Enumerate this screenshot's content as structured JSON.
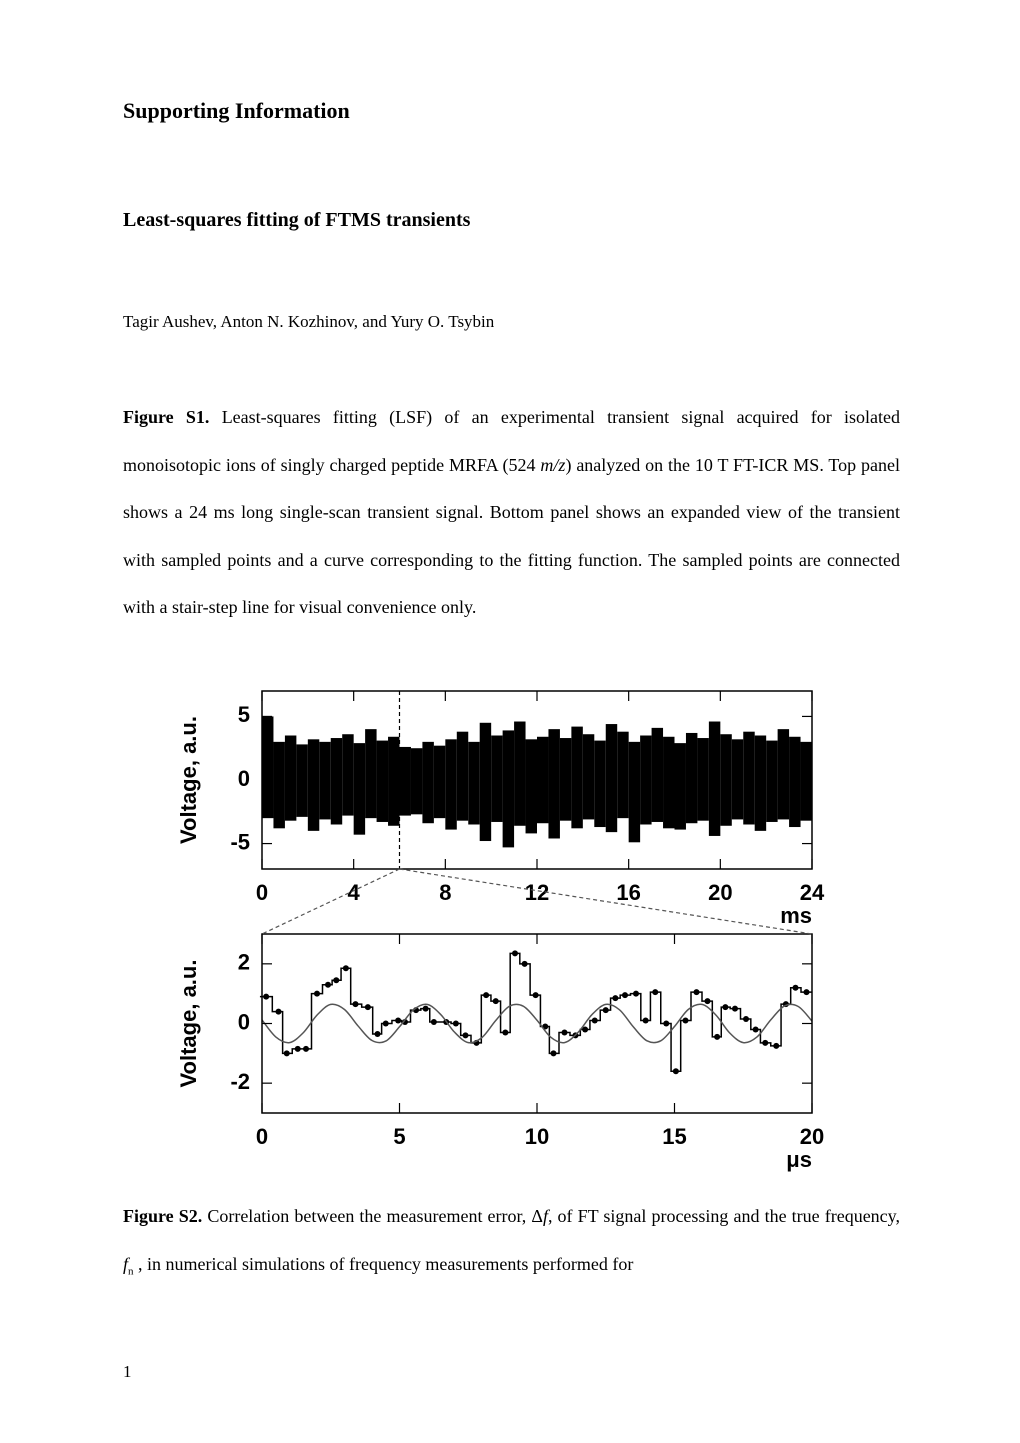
{
  "header": {
    "title": "Supporting Information",
    "subtitle": "Least-squares fitting of FTMS transients",
    "authors": "Tagir Aushev, Anton N. Kozhinov, and Yury O. Tsybin"
  },
  "figure_s1": {
    "label": "Figure S1.",
    "text_1": " Least-squares fitting (LSF) of an experimental transient signal acquired for isolated monoisotopic ions of singly charged peptide MRFA (524 ",
    "italic": "m/z",
    "text_2": ") analyzed on the 10 T FT-ICR MS. Top panel shows a 24 ms long single-scan transient signal. Bottom panel shows an expanded view of the transient with sampled points and a curve corresponding to the fitting function. The sampled points are connected with a stair-step line for visual convenience only."
  },
  "chart_data": [
    {
      "type": "envelope",
      "ylabel": "Voltage, a.u.",
      "xlabel": "ms",
      "color": "#000000",
      "xlim": [
        0,
        24
      ],
      "ylim": [
        -7,
        7
      ],
      "xticks": [
        0,
        4,
        8,
        12,
        16,
        20,
        24
      ],
      "yticks": [
        -5,
        0,
        5
      ],
      "marker_x": 6,
      "x": [
        0.25,
        0.75,
        1.25,
        1.75,
        2.25,
        2.75,
        3.25,
        3.75,
        4.25,
        4.75,
        5.25,
        5.75,
        6.25,
        6.75,
        7.25,
        7.75,
        8.25,
        8.75,
        9.25,
        9.75,
        10.25,
        10.75,
        11.25,
        11.75,
        12.25,
        12.75,
        13.25,
        13.75,
        14.25,
        14.75,
        15.25,
        15.75,
        16.25,
        16.75,
        17.25,
        17.75,
        18.25,
        18.75,
        19.25,
        19.75,
        20.25,
        20.75,
        21.25,
        21.75,
        22.25,
        22.75,
        23.25,
        23.75
      ],
      "max": [
        5.0,
        3.0,
        3.5,
        2.8,
        3.2,
        3.0,
        3.3,
        3.6,
        2.9,
        4.0,
        3.1,
        3.4,
        2.6,
        2.5,
        3.0,
        2.7,
        3.2,
        3.8,
        3.0,
        4.5,
        3.5,
        3.9,
        4.6,
        3.2,
        3.4,
        4.0,
        3.3,
        4.2,
        3.6,
        3.1,
        4.4,
        3.8,
        3.0,
        3.5,
        4.1,
        3.4,
        2.9,
        3.7,
        3.3,
        4.6,
        3.6,
        3.2,
        3.8,
        3.5,
        3.1,
        4.0,
        3.4,
        3.0
      ],
      "min": [
        -3.0,
        -3.8,
        -3.2,
        -2.9,
        -4.0,
        -3.1,
        -3.5,
        -2.8,
        -4.3,
        -3.0,
        -3.3,
        -3.6,
        -2.8,
        -2.7,
        -3.4,
        -3.0,
        -3.9,
        -3.2,
        -3.5,
        -4.8,
        -3.3,
        -5.3,
        -3.6,
        -4.2,
        -3.4,
        -4.6,
        -3.2,
        -3.8,
        -3.1,
        -3.7,
        -4.1,
        -3.0,
        -4.9,
        -3.5,
        -3.3,
        -3.8,
        -3.9,
        -3.4,
        -3.2,
        -4.4,
        -3.6,
        -3.1,
        -3.5,
        -4.0,
        -3.3,
        -3.1,
        -3.7,
        -3.2
      ]
    },
    {
      "type": "line",
      "ylabel": "Voltage, a.u.",
      "xlabel": "μs",
      "xlim": [
        0,
        20
      ],
      "ylim": [
        -3,
        3
      ],
      "xticks": [
        0,
        5,
        10,
        15,
        20
      ],
      "yticks": [
        -2,
        0,
        2
      ],
      "series": [
        {
          "style": "step-points",
          "color": "#000000",
          "x": [
            0.15,
            0.6,
            0.9,
            1.3,
            1.6,
            2.0,
            2.4,
            2.7,
            3.05,
            3.4,
            3.85,
            4.2,
            4.5,
            4.95,
            5.2,
            5.6,
            5.95,
            6.25,
            6.7,
            7.05,
            7.4,
            7.8,
            8.15,
            8.5,
            8.85,
            9.2,
            9.55,
            9.95,
            10.3,
            10.6,
            11.0,
            11.4,
            11.75,
            12.1,
            12.5,
            12.85,
            13.2,
            13.6,
            13.95,
            14.3,
            14.7,
            15.05,
            15.4,
            15.8,
            16.2,
            16.55,
            16.85,
            17.2,
            17.6,
            17.95,
            18.3,
            18.7,
            19.05,
            19.4,
            19.8
          ],
          "values": [
            0.9,
            0.4,
            -1.0,
            -0.85,
            -0.85,
            1.0,
            1.3,
            1.45,
            1.85,
            0.65,
            0.55,
            -0.35,
            0.0,
            0.1,
            0.05,
            0.45,
            0.5,
            0.05,
            0.05,
            0.0,
            -0.4,
            -0.65,
            0.95,
            0.75,
            -0.3,
            2.35,
            2.0,
            0.95,
            -0.1,
            -1.0,
            -0.3,
            -0.4,
            -0.2,
            0.1,
            0.45,
            0.85,
            0.95,
            1.0,
            0.1,
            1.05,
            0.0,
            -1.6,
            0.1,
            1.05,
            0.75,
            -0.45,
            0.55,
            0.5,
            0.15,
            -0.2,
            -0.65,
            -0.75,
            0.65,
            1.2,
            1.05
          ]
        },
        {
          "style": "curve",
          "color": "#555555",
          "x": [
            0,
            0.5,
            1,
            1.5,
            2,
            2.5,
            3,
            3.5,
            4,
            4.5,
            5,
            5.5,
            6,
            6.5,
            7,
            7.5,
            8,
            8.5,
            9,
            9.5,
            10,
            10.5,
            11,
            11.5,
            12,
            12.5,
            13,
            13.5,
            14,
            14.5,
            15,
            15.5,
            16,
            16.5,
            17,
            17.5,
            18,
            18.5,
            19,
            19.5,
            20
          ],
          "values": [
            0.12,
            -0.45,
            -0.64,
            -0.31,
            0.28,
            0.64,
            0.47,
            -0.09,
            -0.57,
            -0.59,
            -0.11,
            0.45,
            0.64,
            0.3,
            -0.29,
            -0.64,
            -0.47,
            0.1,
            0.58,
            0.58,
            0.11,
            -0.46,
            -0.64,
            -0.29,
            0.3,
            0.64,
            0.46,
            -0.11,
            -0.58,
            -0.58,
            -0.1,
            0.47,
            0.64,
            0.29,
            -0.31,
            -0.64,
            -0.45,
            0.12,
            0.59,
            0.57,
            0.08
          ]
        }
      ]
    }
  ],
  "figure_s2": {
    "label": "Figure S2.",
    "text_1": " Correlation between the measurement error, ",
    "delta": "Δ",
    "f_symbol": "f",
    "text_2": ", of FT signal processing and the true frequency, ",
    "fn_symbol": "f",
    "fn_subscript": "n",
    "text_3": " , in numerical simulations of frequency measurements performed for"
  },
  "page_number": "1"
}
